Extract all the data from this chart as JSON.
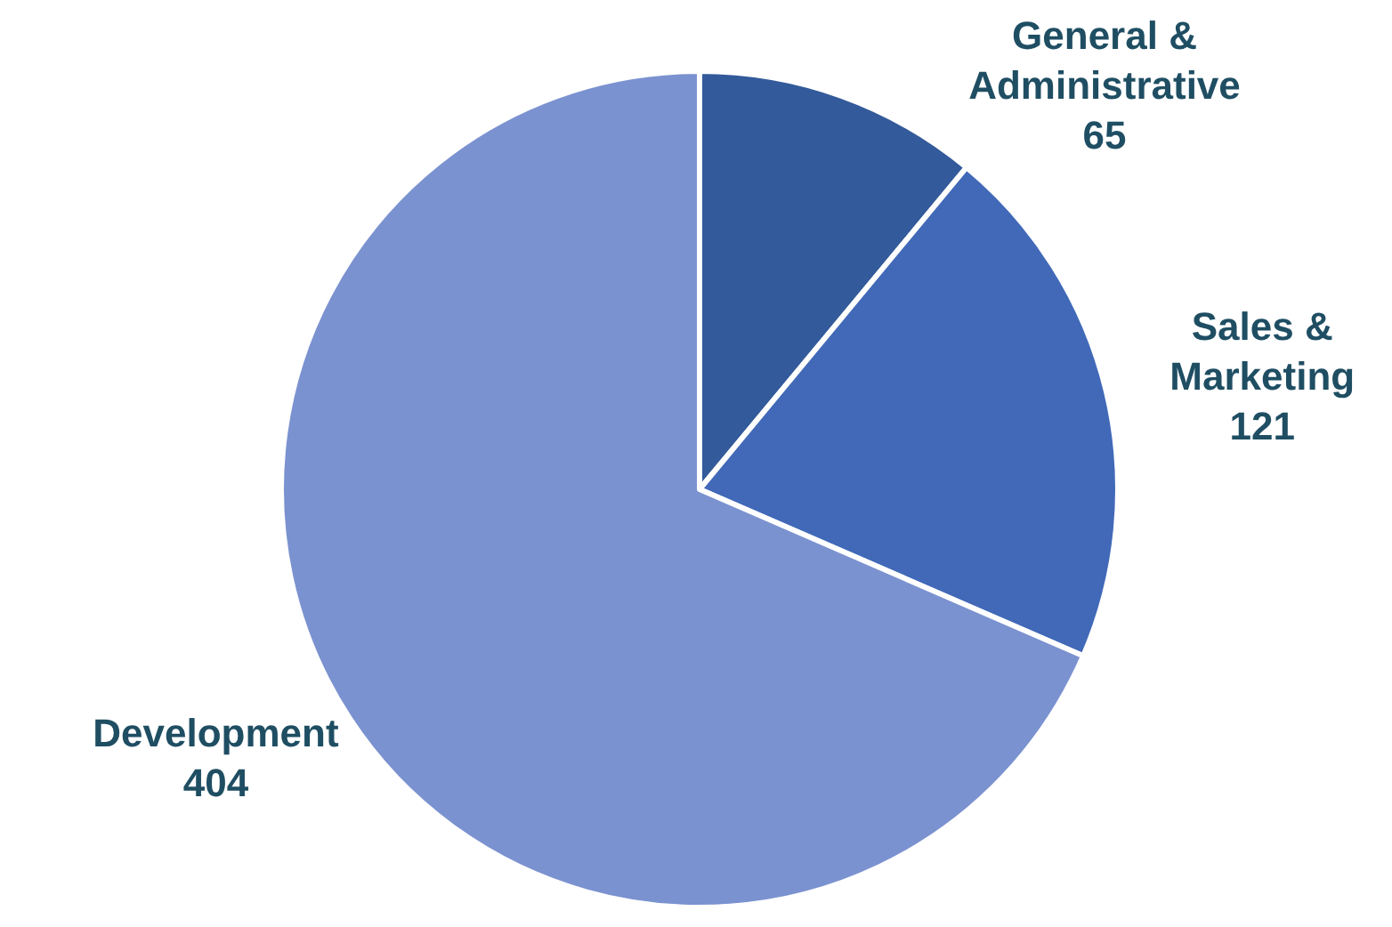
{
  "chart_data": {
    "type": "pie",
    "categories": [
      "General & Administrative",
      "Sales & Marketing",
      "Development"
    ],
    "values": [
      65,
      121,
      404
    ],
    "colors": [
      "#335a9a",
      "#4169b8",
      "#7b92d0"
    ],
    "data_labels": true
  }
}
